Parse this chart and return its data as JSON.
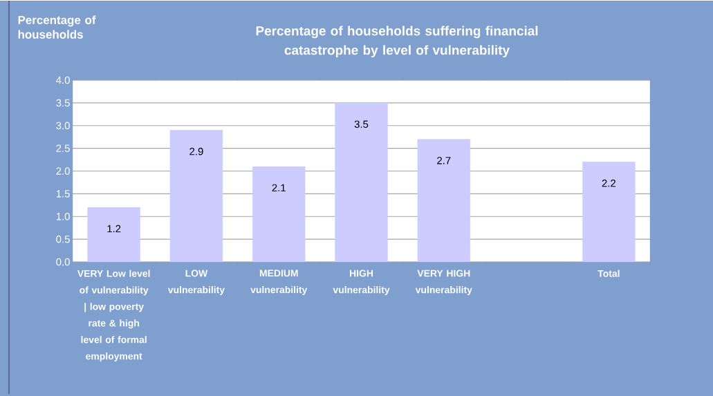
{
  "chart_data": {
    "type": "bar",
    "title": "Percentage of households suffering financial catastrophe by level of vulnerability",
    "ylabel": "Percentage of households",
    "categories": [
      "VERY Low level of vulnerability | low poverty rate & high level of formal employment",
      "LOW vulnerability",
      "MEDIUM vulnerability",
      "HIGH vulnerability",
      "VERY HIGH vulnerability",
      null,
      "Total"
    ],
    "values": [
      1.2,
      2.9,
      2.1,
      3.5,
      2.7,
      null,
      2.2
    ],
    "color": "#ccccff",
    "ylim": [
      0,
      4
    ],
    "yticks": [
      {
        "value": 0,
        "label": "0.0"
      },
      {
        "value": 0.5,
        "label": "0.5"
      },
      {
        "value": 1,
        "label": "1.0"
      },
      {
        "value": 1.5,
        "label": "1.5"
      },
      {
        "value": 2,
        "label": "2.0"
      },
      {
        "value": 2.5,
        "label": "2.5"
      },
      {
        "value": 3,
        "label": "3.0"
      },
      {
        "value": 3.5,
        "label": "3.5"
      },
      {
        "value": 4,
        "label": "4.0"
      }
    ],
    "grid": "y",
    "data_labels": true
  }
}
